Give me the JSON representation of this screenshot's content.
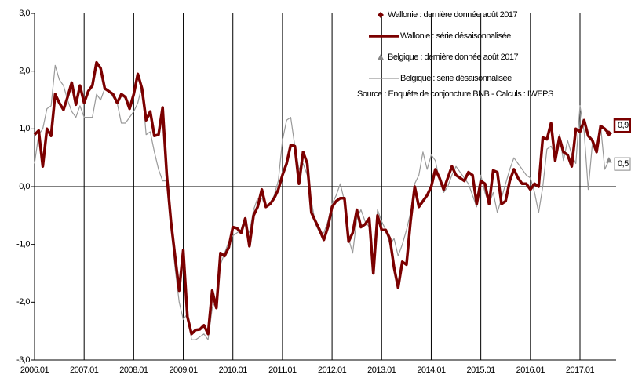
{
  "chart_data": {
    "type": "line",
    "title": "Source : Enquête de conjoncture BNB - Calculs : IWEPS",
    "categories": [
      "2006.01",
      null,
      null,
      null,
      null,
      null,
      null,
      null,
      null,
      null,
      null,
      null,
      "2007.01",
      null,
      null,
      null,
      null,
      null,
      null,
      null,
      null,
      null,
      null,
      null,
      "2008.01",
      null,
      null,
      null,
      null,
      null,
      null,
      null,
      null,
      null,
      null,
      null,
      "2009.01",
      null,
      null,
      null,
      null,
      null,
      null,
      null,
      null,
      null,
      null,
      null,
      "2010.01",
      null,
      null,
      null,
      null,
      null,
      null,
      null,
      null,
      null,
      null,
      null,
      "2011.01",
      null,
      null,
      null,
      null,
      null,
      null,
      null,
      null,
      null,
      null,
      null,
      "2012.01",
      null,
      null,
      null,
      null,
      null,
      null,
      null,
      null,
      null,
      null,
      null,
      "2013.01",
      null,
      null,
      null,
      null,
      null,
      null,
      null,
      null,
      null,
      null,
      null,
      "2014.01",
      null,
      null,
      null,
      null,
      null,
      null,
      null,
      null,
      null,
      null,
      null,
      "2015.01",
      null,
      null,
      null,
      null,
      null,
      null,
      null,
      null,
      null,
      null,
      null,
      "2016.01",
      null,
      null,
      null,
      null,
      null,
      null,
      null,
      null,
      null,
      null,
      null,
      "2017.01",
      null,
      null,
      null,
      null,
      null,
      null,
      null
    ],
    "ylim": [
      -3,
      3
    ],
    "yticks": [
      {
        "value": -3,
        "label": "-3,0"
      },
      {
        "value": -2,
        "label": "-2,0"
      },
      {
        "value": -1,
        "label": "-1,0"
      },
      {
        "value": 0,
        "label": "0,0"
      },
      {
        "value": 1,
        "label": "1,0"
      },
      {
        "value": 2,
        "label": "2,0"
      },
      {
        "value": 3,
        "label": "3,0"
      }
    ],
    "grid": false,
    "series": [
      {
        "name": "Wallonie : série désaisonnalisée",
        "color": "#7b0000",
        "width": 3.5,
        "values": [
          0.9,
          0.97,
          0.35,
          1.0,
          0.88,
          1.6,
          1.45,
          1.33,
          1.55,
          1.8,
          1.42,
          1.75,
          1.45,
          1.65,
          1.75,
          2.15,
          2.05,
          1.7,
          1.65,
          1.6,
          1.45,
          1.6,
          1.55,
          1.35,
          1.6,
          1.95,
          1.7,
          1.15,
          1.3,
          0.88,
          0.9,
          1.37,
          0.2,
          -0.6,
          -1.2,
          -1.8,
          -1.1,
          -2.25,
          -2.55,
          -2.48,
          -2.47,
          -2.4,
          -2.55,
          -1.8,
          -2.1,
          -1.15,
          -1.2,
          -1.05,
          -0.7,
          -0.72,
          -0.8,
          -0.55,
          -1.03,
          -0.5,
          -0.35,
          -0.05,
          -0.35,
          -0.3,
          -0.2,
          -0.05,
          0.2,
          0.4,
          0.72,
          0.7,
          0.05,
          0.6,
          0.4,
          -0.45,
          -0.6,
          -0.75,
          -0.92,
          -0.7,
          -0.35,
          -0.25,
          -0.2,
          -0.2,
          -0.95,
          -0.8,
          -0.4,
          -0.7,
          -0.65,
          -0.55,
          -1.5,
          -0.5,
          -0.75,
          -0.75,
          -0.9,
          -1.4,
          -1.75,
          -1.3,
          -1.35,
          -0.6,
          0.0,
          -0.35,
          -0.25,
          -0.15,
          0.0,
          0.3,
          0.15,
          -0.05,
          0.15,
          0.35,
          0.2,
          0.15,
          0.1,
          0.25,
          0.2,
          -0.3,
          0.1,
          0.05,
          -0.3,
          0.28,
          0.25,
          -0.3,
          -0.25,
          0.1,
          0.3,
          0.15,
          0.05,
          0.05,
          -0.05,
          0.05,
          0.0,
          0.85,
          0.82,
          1.1,
          0.45,
          0.85,
          0.6,
          0.55,
          0.35,
          1.0,
          0.95,
          1.15,
          0.88,
          0.8,
          0.6,
          1.05,
          1.0,
          0.92
        ],
        "last_point": {
          "name": "Wallonie : dernière donnée août 2017",
          "marker": "diamond",
          "value_label": "0,9"
        }
      },
      {
        "name": "Belgique : série désaisonnalisée",
        "color": "#999999",
        "width": 1.2,
        "values": [
          0.4,
          0.9,
          1.0,
          1.35,
          1.4,
          2.1,
          1.85,
          1.75,
          1.5,
          1.3,
          1.2,
          1.4,
          1.2,
          1.2,
          1.2,
          1.6,
          1.5,
          1.7,
          1.65,
          1.55,
          1.45,
          1.1,
          1.1,
          1.2,
          1.3,
          1.45,
          1.75,
          0.9,
          0.95,
          0.6,
          0.3,
          0.1,
          0.1,
          -0.7,
          -1.4,
          -2.0,
          -2.3,
          -2.2,
          -2.65,
          -2.65,
          -2.6,
          -2.55,
          -2.65,
          -2.1,
          -1.95,
          -1.35,
          -1.15,
          -0.95,
          -0.85,
          -0.8,
          -0.75,
          -0.65,
          -0.8,
          -0.4,
          -0.2,
          -0.2,
          -0.35,
          -0.3,
          -0.15,
          0.1,
          0.8,
          1.15,
          1.2,
          0.7,
          0.3,
          0.4,
          0.2,
          -0.25,
          -0.65,
          -0.8,
          -0.8,
          -0.6,
          -0.3,
          -0.15,
          0.05,
          -0.25,
          -0.9,
          -1.15,
          -0.55,
          -0.4,
          -0.6,
          -0.7,
          -1.3,
          -0.4,
          -0.6,
          -0.75,
          -1.0,
          -0.9,
          -1.2,
          -1.0,
          -0.75,
          -0.45,
          0.05,
          0.2,
          0.6,
          0.3,
          0.55,
          0.45,
          0.1,
          -0.1,
          0.0,
          0.2,
          0.35,
          0.25,
          0.15,
          0.05,
          -0.15,
          -0.35,
          0.2,
          -0.1,
          -0.3,
          -0.1,
          -0.45,
          -0.2,
          0.05,
          0.3,
          0.5,
          0.4,
          0.3,
          0.2,
          0.15,
          -0.1,
          -0.45,
          0.0,
          0.65,
          0.7,
          0.55,
          0.9,
          0.45,
          0.8,
          0.55,
          0.4,
          1.4,
          0.95,
          -0.05,
          0.75,
          0.6,
          1.05,
          0.3,
          0.46
        ],
        "last_point": {
          "name": "Belgique : dernière donnée août 2017",
          "marker": "triangle",
          "value_label": "0,5"
        }
      }
    ]
  }
}
